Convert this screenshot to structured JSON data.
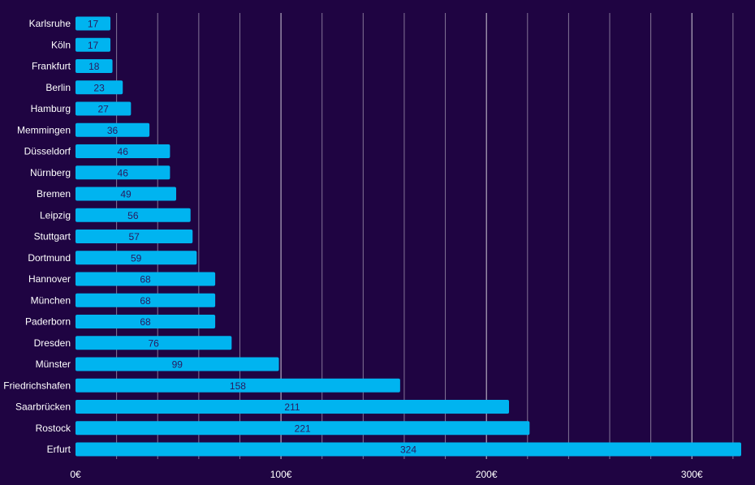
{
  "chart_data": {
    "type": "bar",
    "orientation": "horizontal",
    "categories": [
      "Karlsruhe",
      "Köln",
      "Frankfurt",
      "Berlin",
      "Hamburg",
      "Memmingen",
      "Düsseldorf",
      "Nürnberg",
      "Bremen",
      "Leipzig",
      "Stuttgart",
      "Dortmund",
      "Hannover",
      "München",
      "Paderborn",
      "Dresden",
      "Münster",
      "Friedrichshafen",
      "Saarbrücken",
      "Rostock",
      "Erfurt"
    ],
    "values": [
      17,
      17,
      18,
      23,
      27,
      36,
      46,
      46,
      49,
      56,
      57,
      59,
      68,
      68,
      68,
      76,
      99,
      158,
      211,
      221,
      324
    ],
    "xlim": [
      0,
      324
    ],
    "x_ticks": [
      0,
      100,
      200,
      300
    ],
    "x_tick_labels": [
      "0€",
      "100€",
      "200€",
      "300€"
    ],
    "minor_grid_step": 20,
    "grid": true,
    "colors": {
      "background": "#1f0442",
      "bar": "#00b4f0",
      "value_label": "#2a1a5e",
      "text": "#ffffff"
    }
  }
}
